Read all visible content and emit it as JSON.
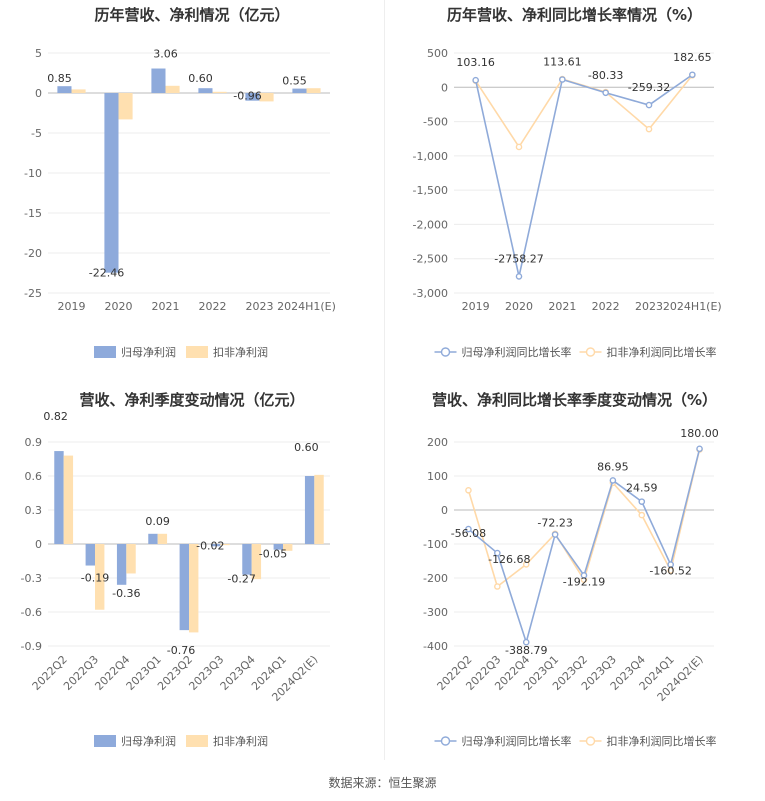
{
  "colors": {
    "blue": "#8eaadb",
    "blue_line": "#8faad9",
    "orange": "#ffe0b0",
    "orange_line": "#ffd9a8",
    "grid": "#ececec",
    "axis_text": "#666666",
    "title": "#333333"
  },
  "footer": {
    "source": "数据来源：恒生聚源"
  },
  "chart_data": [
    {
      "type": "bar",
      "title": "历年营收、净利情况（亿元）",
      "categories": [
        "2019",
        "2020",
        "2021",
        "2022",
        "2023",
        "2024H1(E)"
      ],
      "ylim": [
        -25,
        5
      ],
      "yticks": [
        5,
        0,
        -5,
        -10,
        -15,
        -20,
        -25
      ],
      "ytick_labels": [
        "5",
        "0",
        "-5",
        "-10",
        "-15",
        "-20",
        "-25"
      ],
      "series": [
        {
          "name": "归母净利润",
          "values": [
            0.85,
            -22.46,
            3.06,
            0.6,
            -0.96,
            0.55
          ]
        },
        {
          "name": "扣非净利润",
          "values": [
            0.45,
            -3.3,
            0.9,
            0.15,
            -1.05,
            0.6
          ]
        }
      ],
      "data_labels": [
        "0.85",
        "-22.46",
        "3.06",
        "0.60",
        "-0.96",
        "0.55"
      ],
      "legend": "bottom",
      "grid": true
    },
    {
      "type": "line",
      "title": "历年营收、净利同比增长率情况（%）",
      "categories": [
        "2019",
        "2020",
        "2021",
        "2022",
        "2023",
        "2024H1(E)"
      ],
      "ylim": [
        -3000,
        500
      ],
      "yticks": [
        500,
        0,
        -500,
        -1000,
        -1500,
        -2000,
        -2500,
        -3000
      ],
      "ytick_labels": [
        "500",
        "0",
        "-500",
        "-1,000",
        "-1,500",
        "-2,000",
        "-2,500",
        "-3,000"
      ],
      "series": [
        {
          "name": "归母净利润同比增长率",
          "values": [
            103.16,
            -2758.27,
            113.61,
            -80.33,
            -259.32,
            182.65
          ]
        },
        {
          "name": "扣非净利润同比增长率",
          "values": [
            95,
            -870,
            120,
            -70,
            -610,
            175
          ]
        }
      ],
      "data_labels": [
        "103.16",
        "-2758.27",
        "113.61",
        "-80.33",
        "-259.32",
        "182.65"
      ],
      "legend": "bottom",
      "grid": true
    },
    {
      "type": "bar",
      "title": "营收、净利季度变动情况（亿元）",
      "categories": [
        "2022Q2",
        "2022Q3",
        "2022Q4",
        "2023Q1",
        "2023Q2",
        "2023Q3",
        "2023Q4",
        "2024Q1",
        "2024Q2(E)"
      ],
      "ylim": [
        -0.9,
        0.9
      ],
      "yticks": [
        0.9,
        0.6,
        0.3,
        0,
        -0.3,
        -0.6,
        -0.9
      ],
      "ytick_labels": [
        "0.9",
        "0.6",
        "0.3",
        "0",
        "-0.3",
        "-0.6",
        "-0.9"
      ],
      "series": [
        {
          "name": "归母净利润",
          "values": [
            0.82,
            -0.19,
            -0.36,
            0.09,
            -0.76,
            -0.02,
            -0.27,
            -0.05,
            0.6
          ]
        },
        {
          "name": "扣非净利润",
          "values": [
            0.78,
            -0.58,
            -0.26,
            0.09,
            -0.78,
            -0.01,
            -0.31,
            -0.06,
            0.61
          ]
        }
      ],
      "data_labels": [
        "0.82",
        "-0.19",
        "-0.36",
        "0.09",
        "-0.76",
        "-0.02",
        "-0.27",
        "-0.05",
        "0.60"
      ],
      "legend": "bottom",
      "grid": true
    },
    {
      "type": "line",
      "title": "营收、净利同比增长率季度变动情况（%）",
      "categories": [
        "2022Q2",
        "2022Q3",
        "2022Q4",
        "2023Q1",
        "2023Q2",
        "2023Q3",
        "2023Q4",
        "2024Q1",
        "2024Q2(E)"
      ],
      "ylim": [
        -400,
        200
      ],
      "yticks": [
        200,
        100,
        0,
        -100,
        -200,
        -300,
        -400
      ],
      "ytick_labels": [
        "200",
        "100",
        "0",
        "-100",
        "-200",
        "-300",
        "-400"
      ],
      "series": [
        {
          "name": "归母净利润同比增长率",
          "values": [
            -56.08,
            -126.68,
            -388.79,
            -72.23,
            -192.19,
            86.95,
            24.59,
            -160.52,
            180.0
          ]
        },
        {
          "name": "扣非净利润同比增长率",
          "values": [
            58,
            -225,
            -160,
            -70,
            -205,
            80,
            -15,
            -178,
            178
          ]
        }
      ],
      "data_labels": [
        "-56.08",
        "-126.68",
        "-388.79",
        "-72.23",
        "-192.19",
        "86.95",
        "24.59",
        "-160.52",
        "180.00"
      ],
      "legend": "bottom",
      "grid": true
    }
  ]
}
